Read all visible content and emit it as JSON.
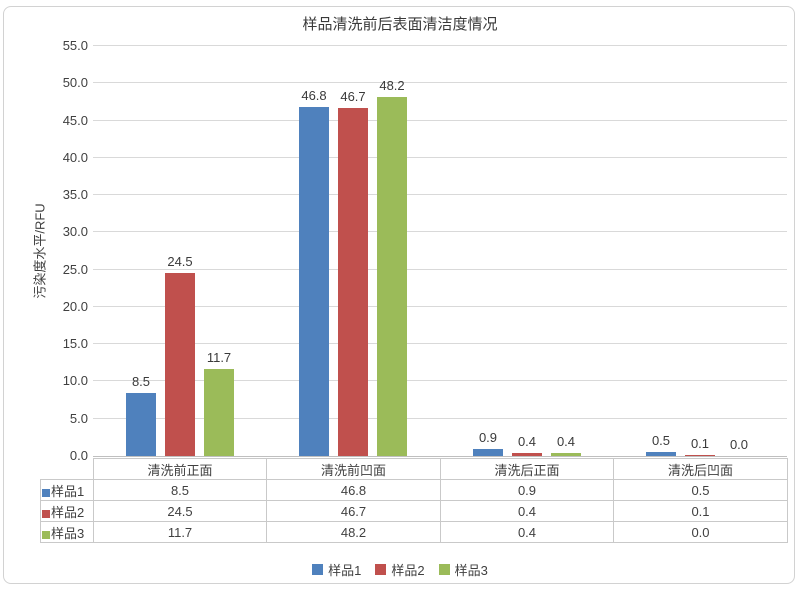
{
  "chart_data": {
    "type": "bar",
    "title": "样品清洗前后表面清洁度情况",
    "xlabel": "",
    "ylabel": "污染度水平/RFU",
    "categories": [
      "清洗前正面",
      "清洗前凹面",
      "清洗后正面",
      "清洗后凹面"
    ],
    "series": [
      {
        "name": "样品1",
        "color": "#4F81BD",
        "values": [
          8.5,
          46.8,
          0.9,
          0.5
        ]
      },
      {
        "name": "样品2",
        "color": "#C0504D",
        "values": [
          24.5,
          46.7,
          0.4,
          0.1
        ]
      },
      {
        "name": "样品3",
        "color": "#9BBB59",
        "values": [
          11.7,
          48.2,
          0.4,
          0.0
        ]
      }
    ],
    "ylim": [
      0,
      55
    ],
    "ytick_step": 5,
    "ytick_labels": [
      "0.0",
      "5.0",
      "10.0",
      "15.0",
      "20.0",
      "25.0",
      "30.0",
      "35.0",
      "40.0",
      "45.0",
      "50.0",
      "55.0"
    ],
    "grid": true,
    "data_labels": true,
    "legend_position": "bottom",
    "show_data_table": true
  },
  "colors": {
    "gridline": "#D9D9D9",
    "axis_line": "#BFBFBF",
    "table_border": "#C9C9C9",
    "text": "#404040"
  }
}
